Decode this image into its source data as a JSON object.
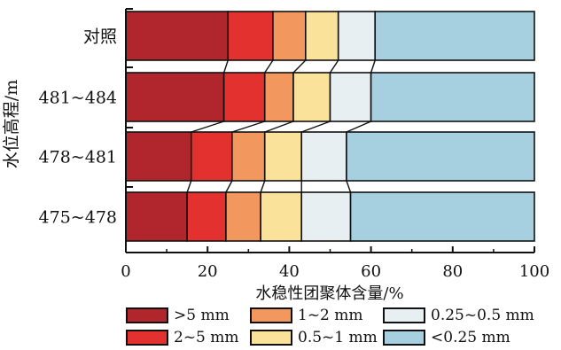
{
  "chart_data": {
    "type": "bar",
    "orientation": "horizontal",
    "stacked": true,
    "categories": [
      "对照",
      "481~484",
      "478~481",
      "475~478"
    ],
    "series": [
      {
        "name": ">5 mm",
        "color": "#b0262c",
        "values": [
          25,
          24,
          16,
          15
        ]
      },
      {
        "name": "2~5 mm",
        "color": "#e3312f",
        "values": [
          11,
          10,
          10,
          9.5
        ]
      },
      {
        "name": "1~2 mm",
        "color": "#f2975e",
        "values": [
          8,
          7,
          8,
          8.5
        ]
      },
      {
        "name": "0.5~1 mm",
        "color": "#fbe29a",
        "values": [
          8,
          9,
          9,
          10
        ]
      },
      {
        "name": "0.25~0.5 mm",
        "color": "#e7eff2",
        "values": [
          9,
          10,
          11,
          12
        ]
      },
      {
        "name": "<0.25 mm",
        "color": "#a6cfe0",
        "values": [
          39,
          40,
          46,
          45
        ]
      }
    ],
    "xlabel": "水稳性团聚体含量/%",
    "ylabel": "水位高程/m",
    "xlim": [
      0,
      100
    ],
    "xticks": [
      0,
      20,
      40,
      60,
      80,
      100
    ],
    "grid": false,
    "legend_position": "bottom"
  },
  "legend": {
    "items": [
      {
        "symbol": ">",
        "label": "5 mm"
      },
      {
        "symbol": "",
        "label": "2~5 mm"
      },
      {
        "symbol": "",
        "label": "1~2 mm"
      },
      {
        "symbol": "",
        "label": "0.5~1 mm"
      },
      {
        "symbol": "",
        "label": "0.25~0.5 mm"
      },
      {
        "symbol": "<",
        "label": "0.25 mm"
      }
    ]
  }
}
